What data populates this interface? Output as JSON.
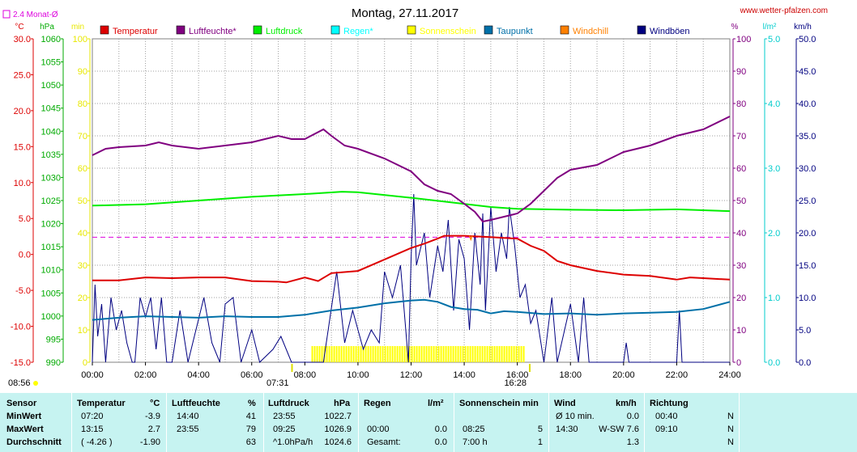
{
  "chart_data": {
    "type": "line",
    "title": "Montag, 27.11.2017",
    "watermark": "www.wetter-pfalzen.com",
    "avg_label": "2.4 Monat-Ø",
    "x_ticks": [
      "00:00",
      "02:00",
      "04:00",
      "06:00",
      "08:00",
      "10:00",
      "12:00",
      "14:00",
      "16:00",
      "18:00",
      "20:00",
      "22:00",
      "24:00"
    ],
    "xlim_hours": [
      0,
      24
    ],
    "sunrise": "07:31",
    "sunset": "16:28",
    "left_corner_time": "08:56",
    "axes": {
      "temperature": {
        "unit": "°C",
        "ticks": [
          "30.0",
          "25.0",
          "20.0",
          "15.0",
          "10.0",
          "5.0",
          "0.0",
          "-5.0",
          "-10.0",
          "-15.0"
        ],
        "range": [
          -15,
          30
        ],
        "color": "#dd0000"
      },
      "pressure": {
        "unit": "hPa",
        "ticks": [
          "1060",
          "1055",
          "1050",
          "1045",
          "1040",
          "1035",
          "1030",
          "1025",
          "1020",
          "1015",
          "1010",
          "1005",
          "1000",
          "995",
          "990"
        ],
        "range": [
          990,
          1060
        ],
        "color": "#00aa00"
      },
      "minutes": {
        "unit": "min",
        "ticks": [
          "100",
          "90",
          "80",
          "70",
          "60",
          "50",
          "40",
          "30",
          "20",
          "10",
          "0"
        ],
        "range": [
          0,
          100
        ],
        "color": "#e8e800"
      },
      "humidity": {
        "unit": "%",
        "ticks": [
          "100",
          "90",
          "80",
          "70",
          "60",
          "50",
          "40",
          "30",
          "20",
          "10",
          "0"
        ],
        "range": [
          0,
          100
        ],
        "color": "#800080"
      },
      "rain": {
        "unit": "l/m²",
        "ticks": [
          "5.0",
          "4.0",
          "3.0",
          "2.0",
          "1.0",
          "0.0"
        ],
        "range": [
          0,
          5
        ],
        "color": "#00cccc"
      },
      "wind": {
        "unit": "km/h",
        "ticks": [
          "50.0",
          "45.0",
          "40.0",
          "35.0",
          "30.0",
          "25.0",
          "20.0",
          "15.0",
          "10.0",
          "5.0",
          "0.0"
        ],
        "range": [
          0,
          50
        ],
        "color": "#000080"
      }
    },
    "legend": [
      {
        "name": "Temperatur",
        "color": "#dd0000"
      },
      {
        "name": "Luftfeuchte*",
        "color": "#800080"
      },
      {
        "name": "Luftdruck",
        "color": "#00ee00"
      },
      {
        "name": "Regen*",
        "color": "#00ffff"
      },
      {
        "name": "Sonnenschein",
        "color": "#ffff00"
      },
      {
        "name": "Taupunkt",
        "color": "#0070a8"
      },
      {
        "name": "Windchill",
        "color": "#ff8000"
      },
      {
        "name": "Windböen",
        "color": "#000080"
      }
    ],
    "monthly_avg_temperature": 2.4,
    "series": {
      "temperature": [
        [
          0,
          -3.6
        ],
        [
          1,
          -3.6
        ],
        [
          2,
          -3.2
        ],
        [
          3,
          -3.3
        ],
        [
          4,
          -3.2
        ],
        [
          5,
          -3.2
        ],
        [
          6,
          -3.7
        ],
        [
          7,
          -3.8
        ],
        [
          7.3,
          -3.9
        ],
        [
          8,
          -3.2
        ],
        [
          8.5,
          -3.7
        ],
        [
          9,
          -2.6
        ],
        [
          10,
          -2.3
        ],
        [
          11,
          -0.7
        ],
        [
          12,
          0.9
        ],
        [
          12.5,
          1.5
        ],
        [
          13,
          2.2
        ],
        [
          13.25,
          2.6
        ],
        [
          14,
          2.6
        ],
        [
          15,
          2.4
        ],
        [
          15.5,
          2.3
        ],
        [
          16,
          2.2
        ],
        [
          16.5,
          1.2
        ],
        [
          17,
          0.5
        ],
        [
          17.5,
          -0.9
        ],
        [
          18,
          -1.5
        ],
        [
          19,
          -2.3
        ],
        [
          20,
          -2.8
        ],
        [
          21,
          -3.0
        ],
        [
          22,
          -3.5
        ],
        [
          22.5,
          -3.2
        ],
        [
          23,
          -3.3
        ],
        [
          24,
          -3.5
        ]
      ],
      "humidity": [
        [
          0,
          64
        ],
        [
          0.5,
          66
        ],
        [
          1,
          66.5
        ],
        [
          2,
          67
        ],
        [
          2.5,
          68
        ],
        [
          3,
          67
        ],
        [
          4,
          66
        ],
        [
          5,
          67
        ],
        [
          6,
          68
        ],
        [
          6.5,
          69
        ],
        [
          7,
          70
        ],
        [
          7.5,
          69
        ],
        [
          8,
          69
        ],
        [
          8.7,
          72
        ],
        [
          9,
          70
        ],
        [
          9.5,
          67
        ],
        [
          10,
          66
        ],
        [
          11,
          63
        ],
        [
          12,
          59
        ],
        [
          12.5,
          55
        ],
        [
          13,
          53
        ],
        [
          13.5,
          52
        ],
        [
          14,
          49
        ],
        [
          14.4,
          46.5
        ],
        [
          14.7,
          43.5
        ],
        [
          15,
          44
        ],
        [
          15.5,
          45
        ],
        [
          16,
          46
        ],
        [
          16.5,
          49
        ],
        [
          17,
          53
        ],
        [
          17.5,
          57
        ],
        [
          18,
          59.5
        ],
        [
          19,
          61
        ],
        [
          19.5,
          63
        ],
        [
          20,
          65
        ],
        [
          21,
          67
        ],
        [
          22,
          70
        ],
        [
          23,
          72
        ],
        [
          24,
          76
        ]
      ],
      "pressure": [
        [
          0,
          1023.9
        ],
        [
          2,
          1024.2
        ],
        [
          4,
          1025.0
        ],
        [
          6,
          1025.8
        ],
        [
          8,
          1026.4
        ],
        [
          9.4,
          1026.9
        ],
        [
          10,
          1026.8
        ],
        [
          12,
          1025.6
        ],
        [
          13.5,
          1024.6
        ],
        [
          15,
          1023.6
        ],
        [
          16,
          1023.2
        ],
        [
          18,
          1023.0
        ],
        [
          20,
          1022.9
        ],
        [
          22,
          1023.1
        ],
        [
          24,
          1022.7
        ]
      ],
      "dewpoint": [
        [
          0,
          -9.1
        ],
        [
          1,
          -8.8
        ],
        [
          2,
          -8.6
        ],
        [
          3,
          -8.7
        ],
        [
          4,
          -8.8
        ],
        [
          5,
          -8.6
        ],
        [
          6,
          -8.7
        ],
        [
          7,
          -8.7
        ],
        [
          8,
          -8.4
        ],
        [
          9,
          -7.8
        ],
        [
          10,
          -7.4
        ],
        [
          11,
          -6.8
        ],
        [
          12,
          -6.4
        ],
        [
          12.5,
          -6.3
        ],
        [
          13,
          -6.6
        ],
        [
          13.5,
          -7.3
        ],
        [
          14,
          -7.6
        ],
        [
          14.5,
          -7.7
        ],
        [
          15,
          -8.2
        ],
        [
          15.5,
          -7.9
        ],
        [
          16,
          -8.0
        ],
        [
          17,
          -8.3
        ],
        [
          18,
          -8.2
        ],
        [
          19,
          -8.4
        ],
        [
          20,
          -8.2
        ],
        [
          21,
          -8.1
        ],
        [
          22,
          -8.0
        ],
        [
          23,
          -7.6
        ],
        [
          24,
          -6.6
        ]
      ],
      "gusts": [
        [
          0,
          0
        ],
        [
          0.1,
          12
        ],
        [
          0.2,
          4
        ],
        [
          0.35,
          9
        ],
        [
          0.5,
          0
        ],
        [
          0.7,
          10
        ],
        [
          0.9,
          5
        ],
        [
          1.1,
          8
        ],
        [
          1.3,
          3
        ],
        [
          1.5,
          0
        ],
        [
          1.6,
          0
        ],
        [
          1.8,
          10
        ],
        [
          2,
          7
        ],
        [
          2.2,
          10
        ],
        [
          2.4,
          2
        ],
        [
          2.6,
          10
        ],
        [
          2.8,
          0
        ],
        [
          3,
          0
        ],
        [
          3.3,
          8
        ],
        [
          3.6,
          0
        ],
        [
          4.2,
          10
        ],
        [
          4.5,
          3
        ],
        [
          4.8,
          0
        ],
        [
          5,
          9
        ],
        [
          5.3,
          10
        ],
        [
          5.6,
          0
        ],
        [
          6,
          5
        ],
        [
          6.3,
          0
        ],
        [
          6.8,
          2
        ],
        [
          7.1,
          4
        ],
        [
          7.5,
          0
        ],
        [
          8.7,
          0
        ],
        [
          9.2,
          14
        ],
        [
          9.5,
          3
        ],
        [
          9.8,
          8
        ],
        [
          10.2,
          2
        ],
        [
          10.5,
          5
        ],
        [
          10.8,
          3
        ],
        [
          11,
          14
        ],
        [
          11.3,
          10
        ],
        [
          11.6,
          15
        ],
        [
          11.9,
          0
        ],
        [
          12,
          16
        ],
        [
          12.1,
          26
        ],
        [
          12.2,
          15
        ],
        [
          12.5,
          20
        ],
        [
          12.7,
          10
        ],
        [
          13,
          18
        ],
        [
          13.2,
          14
        ],
        [
          13.4,
          22
        ],
        [
          13.6,
          8
        ],
        [
          13.8,
          19
        ],
        [
          14,
          16
        ],
        [
          14.2,
          5
        ],
        [
          14.4,
          20
        ],
        [
          14.6,
          12
        ],
        [
          14.7,
          23
        ],
        [
          14.8,
          8
        ],
        [
          15,
          24
        ],
        [
          15.2,
          14
        ],
        [
          15.4,
          20
        ],
        [
          15.6,
          16
        ],
        [
          15.7,
          24
        ],
        [
          15.9,
          18
        ],
        [
          16.1,
          10
        ],
        [
          16.3,
          12
        ],
        [
          16.5,
          6
        ],
        [
          16.7,
          8
        ],
        [
          17,
          0
        ],
        [
          17.3,
          10
        ],
        [
          17.5,
          0
        ],
        [
          18,
          9
        ],
        [
          18.3,
          0
        ],
        [
          18.5,
          10
        ],
        [
          18.7,
          0
        ],
        [
          20,
          0
        ],
        [
          20.1,
          3
        ],
        [
          20.2,
          0
        ],
        [
          22,
          0
        ],
        [
          22.1,
          8
        ],
        [
          22.2,
          0
        ],
        [
          24,
          0
        ]
      ],
      "sunshine_minutes": [
        [
          8.25,
          5
        ],
        [
          8.75,
          5
        ],
        [
          8.8,
          5
        ],
        [
          16.3,
          5
        ]
      ],
      "windchill_dip": [
        [
          14.2,
          2.6
        ],
        [
          14.25,
          2.1
        ],
        [
          14.3,
          2.6
        ]
      ]
    }
  },
  "table": {
    "headers": {
      "sensor": "Sensor",
      "temp": "Temperatur",
      "temp_unit": "°C",
      "hum": "Luftfeuchte",
      "hum_unit": "%",
      "press": "Luftdruck",
      "press_unit": "hPa",
      "rain": "Regen",
      "rain_unit": "l/m²",
      "sun": "Sonnenschein min",
      "wind": "Wind",
      "wind_unit": "km/h",
      "dir": "Richtung"
    },
    "rows": [
      {
        "label": "MinWert",
        "t_time": "07:20",
        "t_val": "-3.9",
        "h_time": "14:40",
        "h_val": "41",
        "p_time": "23:55",
        "p_val": "1022.7",
        "r_time": "",
        "r_val": "",
        "s_time": "",
        "s_val": "",
        "w_time": "Ø 10 min.",
        "w_val": "0.0",
        "d_time": "00:40",
        "d_val": "N"
      },
      {
        "label": "MaxWert",
        "t_time": "13:15",
        "t_val": "2.7",
        "h_time": "23:55",
        "h_val": "79",
        "p_time": "09:25",
        "p_val": "1026.9",
        "r_time": "00:00",
        "r_val": "0.0",
        "s_time": "08:25",
        "s_val": "5",
        "w_time": "14:30",
        "w_val": "W-SW 7.6",
        "d_time": "09:10",
        "d_val": "N"
      },
      {
        "label": "Durchschnitt",
        "t_time": "( -4.26 )",
        "t_val": "-1.90",
        "h_time": "",
        "h_val": "63",
        "p_time": "^1.0hPa/h",
        "p_val": "1024.6",
        "r_time": "Gesamt:",
        "r_val": "0.0",
        "s_time": "7:00 h",
        "s_val": "1",
        "w_time": "",
        "w_val": "1.3",
        "d_time": "",
        "d_val": "N"
      }
    ]
  }
}
